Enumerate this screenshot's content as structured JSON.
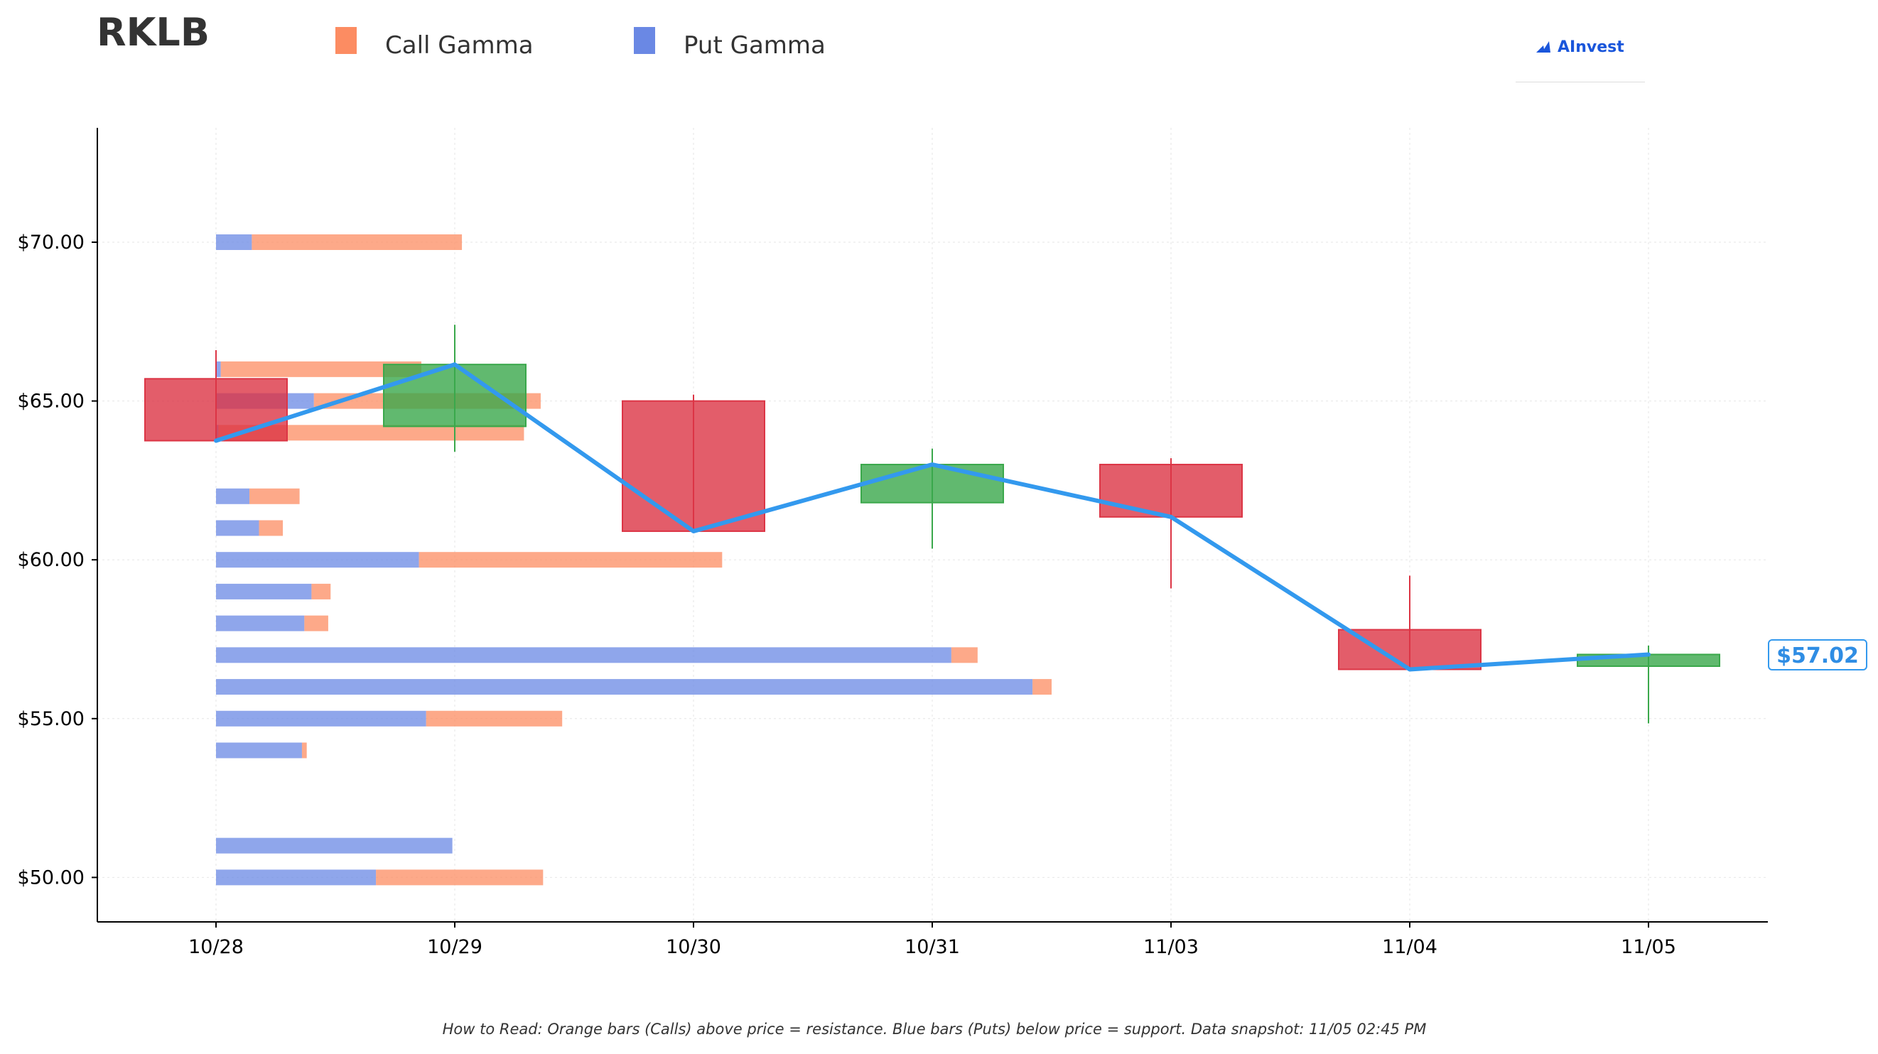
{
  "header": {
    "ticker": "RKLB"
  },
  "legend": [
    {
      "label": "Call Gamma",
      "color": "#fc8c62"
    },
    {
      "label": "Put Gamma",
      "color": "#6a88e4"
    }
  ],
  "brand": {
    "name": "AInvest"
  },
  "footer": {
    "text": "How to Read: Orange bars (Calls) above price = resistance. Blue bars (Puts) below price = support. Data snapshot: 11/05 02:45 PM"
  },
  "price_tag": "$57.02",
  "chart_data": {
    "type": "candlestick",
    "categories": [
      "10/28",
      "10/29",
      "10/30",
      "10/31",
      "11/03",
      "11/04",
      "11/05"
    ],
    "ylim": [
      48.6,
      73.6
    ],
    "yticks": [
      50,
      55,
      60,
      65,
      70
    ],
    "ytick_labels": [
      "$50.00",
      "$55.00",
      "$60.00",
      "$65.00",
      "$70.00"
    ],
    "grid": true,
    "candles": [
      {
        "date": "10/28",
        "open": 65.7,
        "close": 63.75,
        "high": 66.6,
        "low": 63.7
      },
      {
        "date": "10/29",
        "open": 64.2,
        "close": 66.15,
        "high": 67.4,
        "low": 63.4
      },
      {
        "date": "10/30",
        "open": 65.0,
        "close": 60.9,
        "high": 65.2,
        "low": 60.9
      },
      {
        "date": "10/31",
        "open": 61.8,
        "close": 63.0,
        "high": 63.5,
        "low": 60.35
      },
      {
        "date": "11/03",
        "open": 63.0,
        "close": 61.35,
        "high": 63.2,
        "low": 59.1
      },
      {
        "date": "11/04",
        "open": 57.8,
        "close": 56.55,
        "high": 59.5,
        "low": 56.5
      },
      {
        "date": "11/05",
        "open": 56.65,
        "close": 57.02,
        "high": 57.3,
        "low": 54.85
      }
    ],
    "close_line": [
      63.75,
      66.15,
      60.9,
      63.0,
      61.35,
      56.55,
      57.02
    ],
    "gamma_x_unit": "days",
    "gamma_levels": [
      {
        "strike": 70.0,
        "put": 0.15,
        "call": 0.88
      },
      {
        "strike": 66.0,
        "put": 0.02,
        "call": 0.84
      },
      {
        "strike": 65.0,
        "put": 0.41,
        "call": 0.95
      },
      {
        "strike": 64.0,
        "put": 0.01,
        "call": 1.28
      },
      {
        "strike": 62.0,
        "put": 0.14,
        "call": 0.21
      },
      {
        "strike": 61.0,
        "put": 0.18,
        "call": 0.1
      },
      {
        "strike": 60.0,
        "put": 0.85,
        "call": 1.27
      },
      {
        "strike": 59.0,
        "put": 0.4,
        "call": 0.08
      },
      {
        "strike": 58.0,
        "put": 0.37,
        "call": 0.1
      },
      {
        "strike": 57.0,
        "put": 3.08,
        "call": 0.11
      },
      {
        "strike": 56.0,
        "put": 3.42,
        "call": 0.08
      },
      {
        "strike": 55.0,
        "put": 0.88,
        "call": 0.57
      },
      {
        "strike": 54.0,
        "put": 0.36,
        "call": 0.02
      },
      {
        "strike": 51.0,
        "put": 0.99,
        "call": 0.0
      },
      {
        "strike": 50.0,
        "put": 0.67,
        "call": 0.7
      }
    ],
    "colors": {
      "up": "#3aa84b",
      "down": "#dc3545",
      "line": "#3399ee",
      "call": "#fc8c62",
      "put": "#6a88e4"
    }
  }
}
